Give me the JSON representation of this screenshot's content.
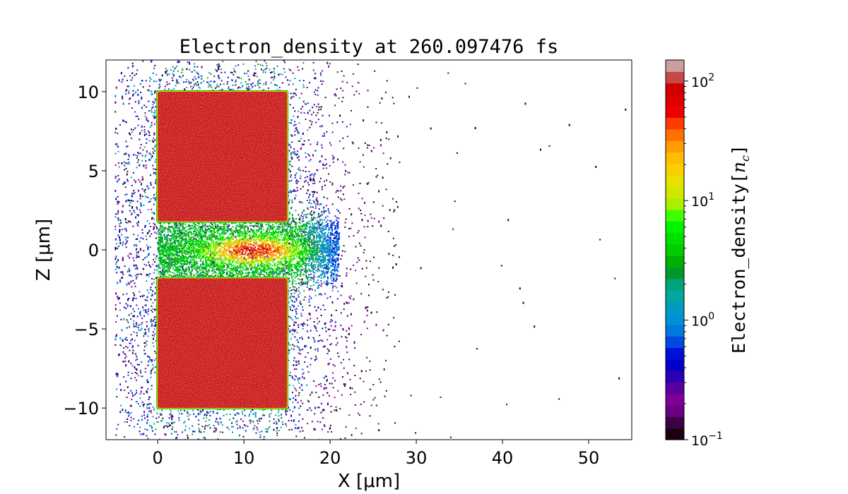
{
  "chart_data": {
    "type": "heatmap",
    "title": "Electron_density at 260.097476 fs",
    "xlabel": "X [μm]",
    "ylabel": "Z [μm]",
    "xlim": [
      -6,
      55
    ],
    "ylim": [
      -12,
      12
    ],
    "x_ticks": [
      0,
      10,
      20,
      30,
      40,
      50
    ],
    "x_tick_labels": [
      "0",
      "10",
      "20",
      "30",
      "40",
      "50"
    ],
    "y_ticks": [
      10,
      5,
      0,
      -5,
      -10
    ],
    "y_tick_labels": [
      "10",
      "5",
      "0",
      "−5",
      "−10"
    ],
    "colorbar": {
      "label": "Electron_density[n_c]",
      "label_main": "Electron_density[",
      "label_var": "n",
      "label_sub": "c",
      "label_end": "]",
      "scale": "log",
      "range": [
        0.1,
        150
      ],
      "ticks": [
        {
          "value": 100,
          "base": "10",
          "exp": "2"
        },
        {
          "value": 10,
          "base": "10",
          "exp": "1"
        },
        {
          "value": 1,
          "base": "10",
          "exp": "0"
        },
        {
          "value": 0.1,
          "base": "10",
          "exp": "−1"
        }
      ],
      "colormap": "nipy_spectral",
      "levels": [
        "#1a0010",
        "#3d0045",
        "#6a0080",
        "#7e0096",
        "#5a00a0",
        "#2a00b0",
        "#0000c8",
        "#0010d8",
        "#0048e0",
        "#0078dd",
        "#0090d8",
        "#009cc0",
        "#00a8a0",
        "#00a478",
        "#009828",
        "#00b000",
        "#00cc00",
        "#00e000",
        "#00f400",
        "#40ff00",
        "#a8f000",
        "#d0e800",
        "#e8e000",
        "#f8d000",
        "#ffbc00",
        "#ff9c00",
        "#ff7000",
        "#ff3c00",
        "#ee0000",
        "#dd0000",
        "#d00000",
        "#c84848",
        "#c8a0a0"
      ]
    },
    "regions": [
      {
        "name": "upper target",
        "x": [
          0,
          15
        ],
        "z": [
          1.8,
          10
        ],
        "density": ">100"
      },
      {
        "name": "lower target",
        "x": [
          0,
          15
        ],
        "z": [
          -10,
          -1.8
        ],
        "density": ">100"
      },
      {
        "name": "channel plasma",
        "x": [
          0,
          20
        ],
        "z": [
          -1.8,
          1.8
        ],
        "density": "3-60"
      },
      {
        "name": "expanding plasma cloud",
        "x": [
          -6,
          55
        ],
        "z": [
          -12,
          12
        ],
        "density": "0.1-3"
      }
    ]
  }
}
